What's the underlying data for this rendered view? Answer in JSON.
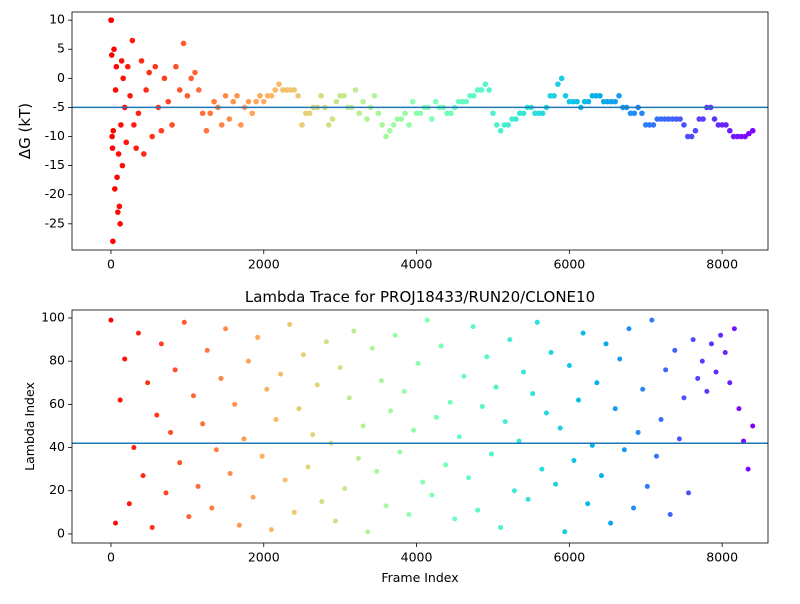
{
  "chart_data": [
    {
      "type": "scatter",
      "ylabel": "ΔG (kT)",
      "colormap": "rainbow_r",
      "hline": -5,
      "hline_color": "#1f77b4",
      "xlim": [
        -510,
        8600
      ],
      "ylim": [
        -29.5,
        11.4
      ],
      "xticks": [
        0,
        2000,
        4000,
        6000,
        8000
      ],
      "yticks": [
        -25,
        -20,
        -15,
        -10,
        -5,
        0,
        5,
        10
      ],
      "x": [
        0,
        5,
        10,
        15,
        20,
        25,
        30,
        40,
        50,
        60,
        70,
        80,
        90,
        100,
        110,
        120,
        130,
        140,
        150,
        160,
        180,
        200,
        220,
        250,
        280,
        300,
        330,
        360,
        400,
        430,
        460,
        500,
        540,
        580,
        620,
        660,
        700,
        750,
        800,
        850,
        900,
        950,
        1000,
        1050,
        1100,
        1150,
        1200,
        1250,
        1300,
        1350,
        1400,
        1450,
        1500,
        1550,
        1600,
        1650,
        1700,
        1750,
        1800,
        1850,
        1900,
        1950,
        2000,
        2050,
        2100,
        2150,
        2200,
        2250,
        2300,
        2350,
        2400,
        2450,
        2500,
        2550,
        2600,
        2650,
        2700,
        2750,
        2800,
        2850,
        2900,
        2950,
        3000,
        3050,
        3100,
        3150,
        3200,
        3250,
        3300,
        3350,
        3400,
        3450,
        3500,
        3550,
        3600,
        3650,
        3700,
        3750,
        3800,
        3850,
        3900,
        3950,
        4000,
        4050,
        4100,
        4150,
        4200,
        4250,
        4300,
        4350,
        4400,
        4450,
        4500,
        4550,
        4600,
        4650,
        4700,
        4750,
        4800,
        4850,
        4900,
        4950,
        5000,
        5050,
        5100,
        5150,
        5200,
        5250,
        5300,
        5350,
        5400,
        5450,
        5500,
        5550,
        5600,
        5650,
        5700,
        5750,
        5800,
        5850,
        5900,
        5950,
        6000,
        6050,
        6100,
        6150,
        6200,
        6250,
        6300,
        6350,
        6400,
        6450,
        6500,
        6550,
        6600,
        6650,
        6700,
        6750,
        6800,
        6850,
        6900,
        6950,
        7000,
        7050,
        7100,
        7150,
        7200,
        7250,
        7300,
        7350,
        7400,
        7450,
        7500,
        7550,
        7600,
        7650,
        7700,
        7750,
        7800,
        7850,
        7900,
        7950,
        8000,
        8050,
        8100,
        8150,
        8200,
        8250,
        8300,
        8350,
        8400
      ],
      "values": [
        10,
        10,
        4,
        -10,
        -12,
        -28,
        -9,
        5,
        -19,
        -2,
        2,
        -17,
        -23,
        -13,
        -22,
        -25,
        -8,
        3,
        -15,
        0,
        -5,
        -11,
        2,
        -3,
        6.5,
        -8,
        -12,
        -6,
        3,
        -13,
        -2,
        1,
        -10,
        2,
        -5,
        -9,
        0,
        -4,
        -8,
        2,
        -2,
        6,
        -3,
        0,
        1,
        -2,
        -6,
        -9,
        -6,
        -4,
        -5,
        -8,
        -3,
        -7,
        -4,
        -3,
        -8,
        -5,
        -4,
        -6,
        -4,
        -3,
        -4,
        -3,
        -3,
        -2,
        -1,
        -2,
        -2,
        -2,
        -2,
        -3,
        -8,
        -6,
        -6,
        -5,
        -5,
        -3,
        -5,
        -8,
        -7,
        -4,
        -3,
        -3,
        -5,
        -5,
        -2,
        -6,
        -4,
        -7,
        -5,
        -3,
        -6,
        -8,
        -10,
        -9,
        -8,
        -7,
        -7,
        -6,
        -8,
        -4,
        -6,
        -6,
        -5,
        -5,
        -7,
        -4,
        -5,
        -5,
        -6,
        -6,
        -5,
        -4,
        -4,
        -4,
        -3,
        -3,
        -2,
        -2,
        -1,
        -2,
        -6,
        -8,
        -9,
        -8,
        -8,
        -7,
        -7,
        -6,
        -6,
        -5,
        -5,
        -6,
        -6,
        -6,
        -5,
        -3,
        -3,
        -1,
        0,
        -3,
        -4,
        -4,
        -4,
        -5,
        -4,
        -4,
        -3,
        -3,
        -3,
        -4,
        -4,
        -4,
        -4,
        -3,
        -5,
        -5,
        -6,
        -6,
        -5,
        -6,
        -8,
        -8,
        -8,
        -7,
        -7,
        -7,
        -7,
        -7,
        -7,
        -7,
        -8,
        -10,
        -10,
        -9,
        -7,
        -7,
        -5,
        -5,
        -7,
        -8,
        -8,
        -8,
        -9,
        -10,
        -10,
        -10,
        -10,
        -9.5,
        -9
      ]
    },
    {
      "type": "scatter",
      "title": "Lambda Trace for PROJ18433/RUN20/CLONE10",
      "xlabel": "Frame Index",
      "ylabel": "Lambda Index",
      "colormap": "rainbow_r",
      "hline": 42,
      "hline_color": "#1f77b4",
      "xlim": [
        -510,
        8600
      ],
      "ylim": [
        -4.2,
        103.7
      ],
      "xticks": [
        0,
        2000,
        4000,
        6000,
        8000
      ],
      "yticks": [
        0,
        20,
        40,
        60,
        80,
        100
      ],
      "x": [
        0,
        60,
        120,
        180,
        240,
        300,
        360,
        420,
        480,
        540,
        600,
        660,
        720,
        780,
        840,
        900,
        960,
        1020,
        1080,
        1140,
        1200,
        1260,
        1320,
        1380,
        1440,
        1500,
        1560,
        1620,
        1680,
        1740,
        1800,
        1860,
        1920,
        1980,
        2040,
        2100,
        2160,
        2220,
        2280,
        2340,
        2400,
        2460,
        2520,
        2580,
        2640,
        2700,
        2760,
        2820,
        2880,
        2940,
        3000,
        3060,
        3120,
        3180,
        3240,
        3300,
        3360,
        3420,
        3480,
        3540,
        3600,
        3660,
        3720,
        3780,
        3840,
        3900,
        3960,
        4020,
        4080,
        4140,
        4200,
        4260,
        4320,
        4380,
        4440,
        4500,
        4560,
        4620,
        4680,
        4740,
        4800,
        4860,
        4920,
        4980,
        5040,
        5100,
        5160,
        5220,
        5280,
        5340,
        5400,
        5460,
        5520,
        5580,
        5640,
        5700,
        5760,
        5820,
        5880,
        5940,
        6000,
        6060,
        6120,
        6180,
        6240,
        6300,
        6360,
        6420,
        6480,
        6540,
        6600,
        6660,
        6720,
        6780,
        6840,
        6900,
        6960,
        7020,
        7080,
        7140,
        7200,
        7260,
        7320,
        7380,
        7440,
        7500,
        7560,
        7620,
        7680,
        7740,
        7800,
        7860,
        7920,
        7980,
        8040,
        8100,
        8160,
        8220,
        8280,
        8340,
        8400
      ],
      "values": [
        99,
        5,
        62,
        81,
        14,
        40,
        93,
        27,
        70,
        3,
        55,
        88,
        19,
        47,
        76,
        33,
        98,
        8,
        64,
        22,
        51,
        85,
        12,
        39,
        72,
        95,
        28,
        60,
        4,
        44,
        80,
        17,
        91,
        36,
        67,
        2,
        53,
        74,
        25,
        97,
        10,
        58,
        83,
        31,
        46,
        69,
        15,
        89,
        42,
        6,
        77,
        21,
        63,
        94,
        35,
        50,
        1,
        86,
        29,
        71,
        13,
        57,
        92,
        38,
        66,
        9,
        48,
        79,
        24,
        99,
        18,
        54,
        87,
        32,
        61,
        7,
        45,
        73,
        26,
        96,
        11,
        59,
        82,
        37,
        68,
        3,
        52,
        90,
        20,
        43,
        75,
        16,
        65,
        98,
        30,
        56,
        84,
        23,
        49,
        1,
        78,
        34,
        62,
        93,
        14,
        41,
        70,
        27,
        88,
        5,
        58,
        81,
        39,
        95,
        12,
        47,
        67,
        22,
        99,
        36,
        53,
        76,
        9,
        85,
        44,
        63,
        19,
        90,
        72,
        80,
        66,
        88,
        75,
        92,
        84,
        70,
        95,
        58,
        43,
        30,
        50
      ]
    }
  ]
}
